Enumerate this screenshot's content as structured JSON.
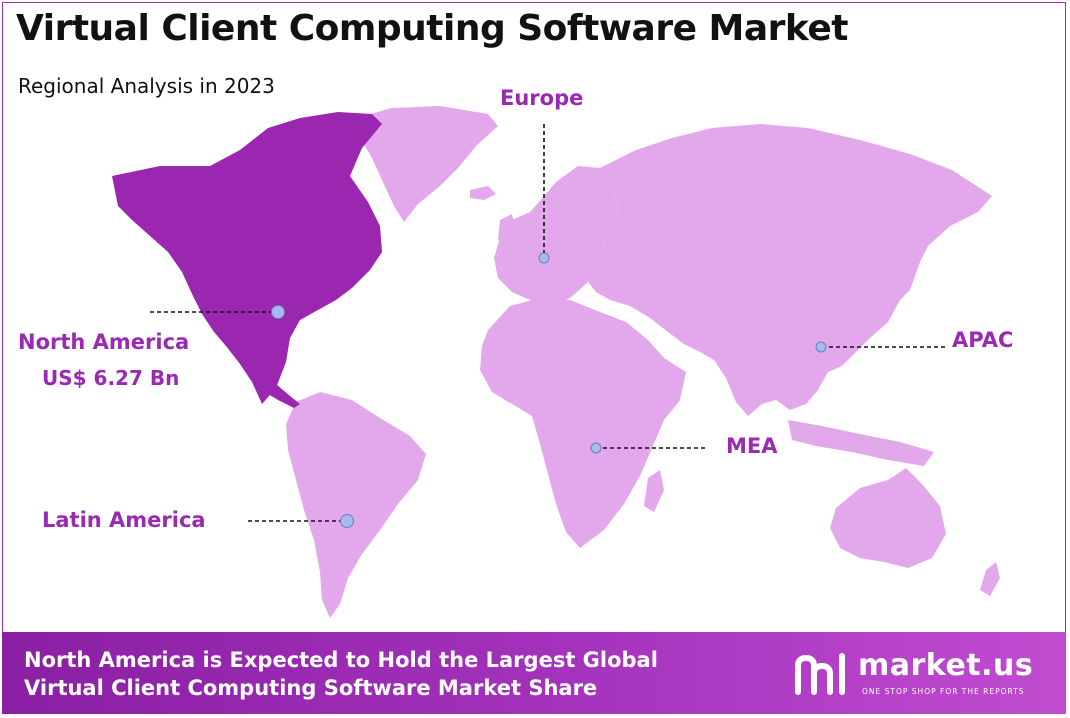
{
  "header": {
    "title": "Virtual Client Computing Software Market",
    "subtitle": "Regional Analysis in 2023"
  },
  "regions": {
    "north_america": {
      "name": "North America",
      "value": "US$ 6.27 Bn"
    },
    "europe": {
      "name": "Europe"
    },
    "apac": {
      "name": "APAC"
    },
    "mea": {
      "name": "MEA"
    },
    "latin_america": {
      "name": "Latin America"
    }
  },
  "footer": {
    "line1": "North America is Expected to Hold the Largest Global",
    "line2": "Virtual Client Computing Software Market Share"
  },
  "brand": {
    "name": "market.us",
    "tagline": "ONE STOP SHOP FOR THE REPORTS",
    "icon": "market-us-logo-icon"
  },
  "colors": {
    "highlight_region": "#9b27b0",
    "other_regions": "#e3a8ec",
    "label_text": "#9a2ab3",
    "marker": "#a9b9ee",
    "footer_band": "#9b2fb0"
  }
}
